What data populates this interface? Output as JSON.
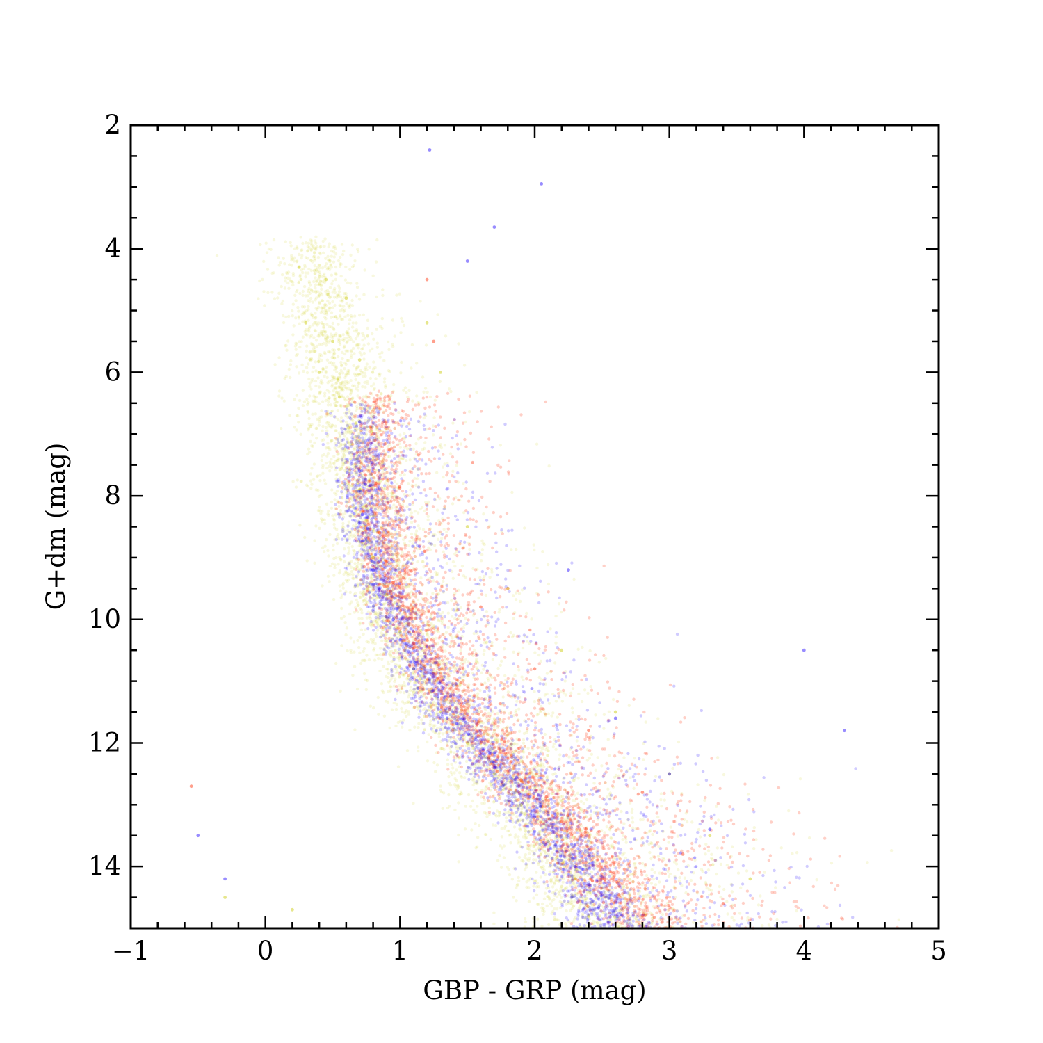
{
  "chart_data": {
    "type": "scatter",
    "title": "",
    "xlabel": "GBP - GRP (mag)",
    "ylabel": "G+dm (mag)",
    "xlim": [
      -1,
      5
    ],
    "ylim": [
      15,
      2
    ],
    "y_inverted": true,
    "xticks": [
      -1,
      0,
      1,
      2,
      3,
      4,
      5
    ],
    "xtick_labels": [
      "−1",
      "0",
      "1",
      "2",
      "3",
      "4",
      "5"
    ],
    "yticks": [
      2,
      4,
      6,
      8,
      10,
      12,
      14
    ],
    "ytick_labels": [
      "2",
      "4",
      "6",
      "8",
      "10",
      "12",
      "14"
    ],
    "grid": false,
    "legend": "none",
    "series": [
      {
        "color": "#c8c800",
        "main_sequence_locus": {
          "G": [
            4.0,
            6.0,
            7.5,
            8.5,
            9.5,
            10.5,
            11.5,
            12.5,
            13.5,
            14.5,
            15.0
          ],
          "color_index": [
            0.3,
            0.5,
            0.65,
            0.7,
            0.8,
            1.0,
            1.3,
            1.7,
            2.05,
            2.35,
            2.45
          ]
        },
        "sampled_points": [
          [
            0.25,
            4.3
          ],
          [
            0.45,
            4.5
          ],
          [
            0.6,
            4.8
          ],
          [
            0.3,
            5.2
          ],
          [
            0.5,
            5.5
          ],
          [
            0.7,
            5.8
          ],
          [
            0.4,
            6.0
          ],
          [
            0.55,
            6.4
          ],
          [
            0.62,
            6.9
          ],
          [
            0.68,
            7.4
          ],
          [
            0.7,
            7.9
          ],
          [
            0.75,
            8.4
          ],
          [
            0.8,
            9.0
          ],
          [
            0.9,
            9.6
          ],
          [
            1.0,
            10.2
          ],
          [
            1.1,
            10.8
          ],
          [
            1.3,
            11.5
          ],
          [
            1.5,
            12.0
          ],
          [
            1.7,
            12.5
          ],
          [
            1.9,
            13.0
          ],
          [
            2.1,
            13.6
          ],
          [
            2.3,
            14.2
          ],
          [
            2.4,
            14.8
          ],
          [
            1.2,
            5.2
          ],
          [
            1.3,
            6.0
          ],
          [
            1.5,
            8.5
          ],
          [
            1.8,
            9.5
          ],
          [
            2.2,
            10.5
          ],
          [
            2.6,
            11.5
          ],
          [
            3.0,
            12.5
          ],
          [
            3.3,
            13.5
          ],
          [
            3.6,
            14.2
          ],
          [
            -0.3,
            14.5
          ],
          [
            0.2,
            14.7
          ]
        ]
      },
      {
        "color": "#ff2a00",
        "main_sequence_locus": {
          "G": [
            6.5,
            7.5,
            8.5,
            9.5,
            10.5,
            11.5,
            12.5,
            13.5,
            14.5,
            15.0
          ],
          "color_index": [
            0.8,
            0.8,
            0.85,
            0.95,
            1.15,
            1.45,
            1.85,
            2.25,
            2.65,
            2.8
          ]
        },
        "sampled_points": [
          [
            0.8,
            7.0
          ],
          [
            0.82,
            7.8
          ],
          [
            0.85,
            8.6
          ],
          [
            0.95,
            9.4
          ],
          [
            1.1,
            10.2
          ],
          [
            1.3,
            11.0
          ],
          [
            1.6,
            11.8
          ],
          [
            1.9,
            12.6
          ],
          [
            2.2,
            13.4
          ],
          [
            2.5,
            14.2
          ],
          [
            2.8,
            14.8
          ],
          [
            1.2,
            4.5
          ],
          [
            1.25,
            5.5
          ],
          [
            1.6,
            9.8
          ],
          [
            2.0,
            10.8
          ],
          [
            2.4,
            11.8
          ],
          [
            2.8,
            12.8
          ],
          [
            3.1,
            13.8
          ],
          [
            3.4,
            14.6
          ],
          [
            -0.55,
            12.7
          ]
        ]
      },
      {
        "color": "#1a00ff",
        "main_sequence_locus": {
          "G": [
            6.5,
            7.5,
            8.5,
            9.5,
            10.5,
            11.5,
            12.5,
            13.5,
            14.5,
            15.0
          ],
          "color_index": [
            0.7,
            0.7,
            0.75,
            0.85,
            1.05,
            1.35,
            1.75,
            2.15,
            2.45,
            2.55
          ]
        },
        "sampled_points": [
          [
            0.7,
            6.8
          ],
          [
            0.7,
            7.6
          ],
          [
            0.72,
            8.3
          ],
          [
            0.8,
            9.2
          ],
          [
            0.95,
            10.0
          ],
          [
            1.1,
            10.8
          ],
          [
            1.35,
            11.6
          ],
          [
            1.7,
            12.4
          ],
          [
            2.0,
            13.2
          ],
          [
            2.3,
            14.0
          ],
          [
            2.55,
            14.9
          ],
          [
            1.22,
            2.4
          ],
          [
            2.05,
            2.95
          ],
          [
            1.7,
            3.65
          ],
          [
            1.5,
            4.2
          ],
          [
            2.25,
            9.2
          ],
          [
            2.6,
            11.6
          ],
          [
            3.0,
            12.5
          ],
          [
            3.3,
            13.4
          ],
          [
            4.0,
            10.5
          ],
          [
            4.3,
            11.8
          ],
          [
            -0.5,
            13.5
          ],
          [
            -0.3,
            14.2
          ]
        ]
      }
    ]
  }
}
